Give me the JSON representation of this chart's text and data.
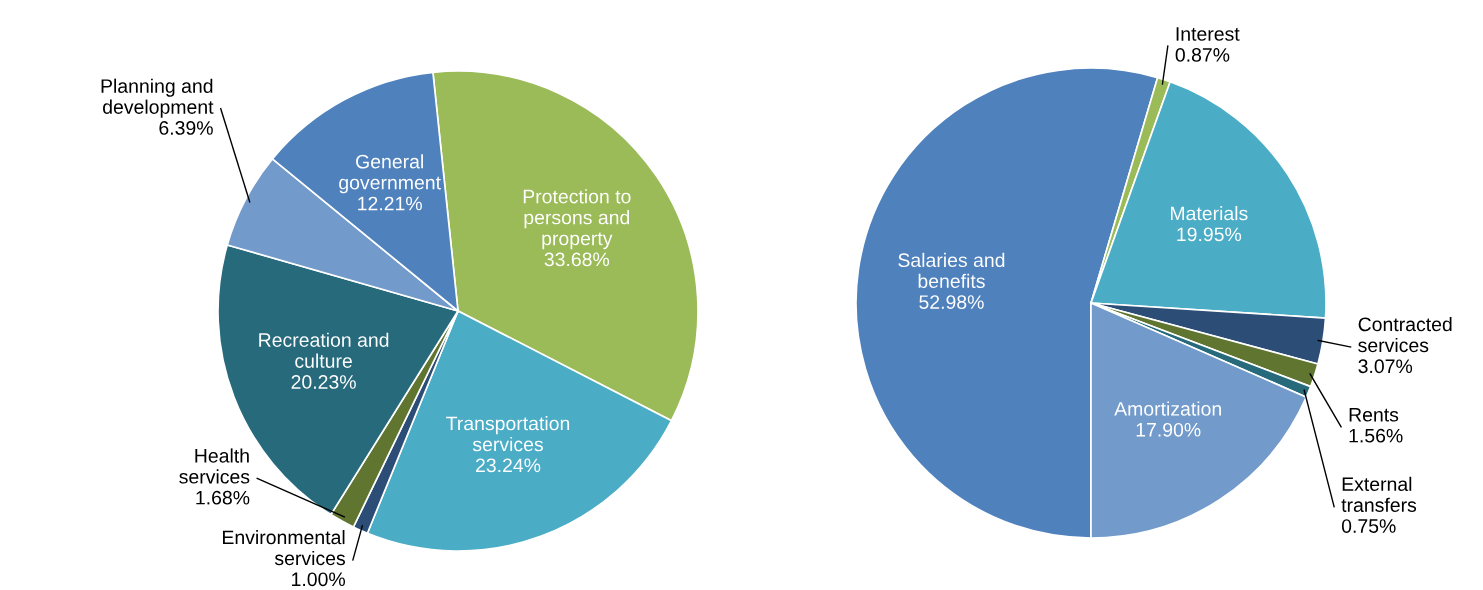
{
  "chart_data": [
    {
      "type": "pie",
      "categories": [
        "Protection to persons and property",
        "Transportation services",
        "Environmental services",
        "Health services",
        "Recreation and culture",
        "Planning and development",
        "General government"
      ],
      "values": [
        33.68,
        23.24,
        1.0,
        1.68,
        20.23,
        6.39,
        12.21
      ],
      "value_labels": [
        "33.68%",
        "23.24%",
        "1.00%",
        "1.68%",
        "20.23%",
        "6.39%",
        "12.21%"
      ],
      "colors": [
        "#9bbb59",
        "#4bacc6",
        "#2c4d75",
        "#5f7530",
        "#276a7c",
        "#729aca",
        "#4f81bd"
      ]
    },
    {
      "type": "pie",
      "categories": [
        "Salaries and benefits",
        "Interest",
        "Materials",
        "Contracted services",
        "Rents",
        "External transfers",
        "Amortization"
      ],
      "values": [
        52.98,
        0.87,
        19.95,
        3.07,
        1.56,
        0.75,
        17.9
      ],
      "value_labels": [
        "52.98%",
        "0.87%",
        "19.95%",
        "3.07%",
        "1.56%",
        "0.75%",
        "17.90%"
      ],
      "colors": [
        "#4f81bd",
        "#9bbb59",
        "#4bacc6",
        "#2c4d75",
        "#5f7530",
        "#276a7c",
        "#729aca"
      ]
    }
  ]
}
